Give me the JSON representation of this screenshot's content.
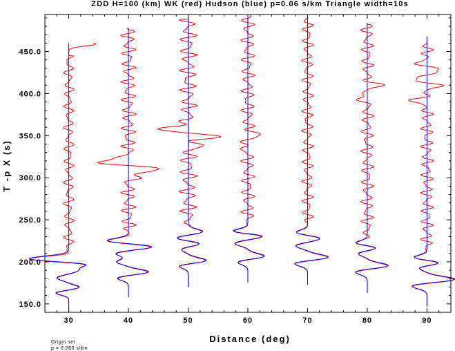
{
  "chart_data": {
    "type": "line",
    "title": "ZDD H=100 (km) WK (red) Hudson (blue) p=0.06 s/km Triangle width=10s",
    "xlabel": "Distance (deg)",
    "ylabel": "T -p X (s)",
    "xlim": [
      26,
      94
    ],
    "ylim": [
      140,
      494
    ],
    "x_ticks": [
      30,
      40,
      50,
      60,
      70,
      80,
      90
    ],
    "x_tick_labels": [
      "30",
      "40",
      "50",
      "60",
      "70",
      "80",
      "90"
    ],
    "y_ticks": [
      150,
      200,
      250,
      300,
      350,
      400,
      450
    ],
    "y_tick_labels": [
      "150.0",
      "200.0",
      "250.0",
      "300.0",
      "350.0",
      "400.0",
      "450.0"
    ],
    "grid": false,
    "series": [
      {
        "name": "WK",
        "color": "#ff0000"
      },
      {
        "name": "Hudson",
        "color": "#0000ff"
      }
    ],
    "traces": [
      {
        "distance": 30,
        "t_start": 140,
        "t_end": 460,
        "blue_pulses": [
          [
            163,
            -2.2,
            2.5
          ],
          [
            170,
            1.8,
            2.5
          ],
          [
            181,
            -2.0,
            3
          ],
          [
            190,
            1.6,
            3
          ],
          [
            198,
            4.6,
            3
          ],
          [
            203,
            -7.5,
            3.5
          ]
        ],
        "red_noise": {
          "t_start": 200,
          "t_end": 445,
          "amp": 0.9,
          "period": 13
        },
        "red_end_pulse": [
          459,
          4.5,
          2.5
        ]
      },
      {
        "distance": 40,
        "t_start": 158,
        "t_end": 478,
        "blue_pulses": [
          [
            181,
            -2.0,
            3
          ],
          [
            188,
            3.5,
            3
          ],
          [
            200,
            -2.0,
            3
          ],
          [
            210,
            -2.2,
            3
          ],
          [
            218,
            4.2,
            3
          ],
          [
            225,
            -3.8,
            3
          ]
        ],
        "red_noise": {
          "t_start": 228,
          "t_end": 478,
          "amp": 1.3,
          "period": 11
        },
        "red_burst": [
          [
            311,
            4.8,
            3
          ],
          [
            319,
            -5.6,
            3
          ],
          [
            303,
            2.0,
            3
          ]
        ]
      },
      {
        "distance": 50,
        "t_start": 170,
        "t_end": 490,
        "blue_pulses": [
          [
            196,
            -2.4,
            3
          ],
          [
            201,
            3.5,
            3.5
          ],
          [
            215,
            -1.2,
            3
          ],
          [
            222,
            2.2,
            3
          ],
          [
            228,
            -2.2,
            3
          ],
          [
            236,
            2.5,
            3
          ]
        ],
        "red_noise": {
          "t_start": 240,
          "t_end": 488,
          "amp": 1.5,
          "period": 12
        },
        "red_burst": [
          [
            349,
            4.4,
            3.5
          ],
          [
            358,
            -4.6,
            3.5
          ],
          [
            337,
            1.8,
            3
          ]
        ]
      },
      {
        "distance": 60,
        "t_start": 175,
        "t_end": 494,
        "blue_pulses": [
          [
            201,
            -2.5,
            3.5
          ],
          [
            206,
            3.5,
            3.5
          ],
          [
            222,
            -2.2,
            3
          ],
          [
            231,
            3.0,
            3
          ],
          [
            236,
            -3.0,
            3
          ]
        ],
        "red_noise": {
          "t_start": 242,
          "t_end": 494,
          "amp": 1.2,
          "period": 12
        },
        "red_burst": [
          [
            352,
            1.8,
            3
          ],
          [
            337,
            -1.2,
            3
          ]
        ]
      },
      {
        "distance": 70,
        "t_start": 173,
        "t_end": 493,
        "blue_pulses": [
          [
            199,
            -2.8,
            3.5
          ],
          [
            205,
            4.0,
            3.5
          ],
          [
            219,
            -2.0,
            3
          ],
          [
            228,
            2.2,
            3
          ],
          [
            235,
            -2.0,
            3
          ]
        ],
        "red_noise": {
          "t_start": 240,
          "t_end": 490,
          "amp": 1.0,
          "period": 12
        }
      },
      {
        "distance": 80,
        "t_start": 163,
        "t_end": 484,
        "blue_pulses": [
          [
            189,
            -2.6,
            3.5
          ],
          [
            195,
            4.0,
            3.5
          ],
          [
            210,
            -1.6,
            3
          ],
          [
            217,
            2.0,
            3
          ],
          [
            222,
            -2.3,
            3
          ]
        ],
        "red_noise": {
          "t_start": 225,
          "t_end": 482,
          "amp": 1.1,
          "period": 12
        },
        "red_burst": [
          [
            410,
            2.0,
            3
          ],
          [
            396,
            -1.6,
            3
          ]
        ]
      },
      {
        "distance": 90,
        "t_start": 147,
        "t_end": 468,
        "blue_pulses": [
          [
            172,
            -3.0,
            3.5
          ],
          [
            179,
            5.0,
            3.5
          ],
          [
            193,
            -1.5,
            3
          ],
          [
            199,
            2.4,
            3
          ],
          [
            205,
            -2.4,
            3
          ]
        ],
        "red_noise": {
          "t_start": 210,
          "t_end": 460,
          "amp": 1.1,
          "period": 11
        },
        "red_burst": [
          [
            426,
            2.4,
            3
          ],
          [
            418,
            -2.6,
            3
          ],
          [
            410,
            2.0,
            3
          ],
          [
            391,
            -2.2,
            3.5
          ],
          [
            437,
            -1.4,
            3
          ]
        ]
      }
    ]
  },
  "notes": {
    "line1": "Origin set",
    "line2": "p = 0.060 s/km"
  }
}
